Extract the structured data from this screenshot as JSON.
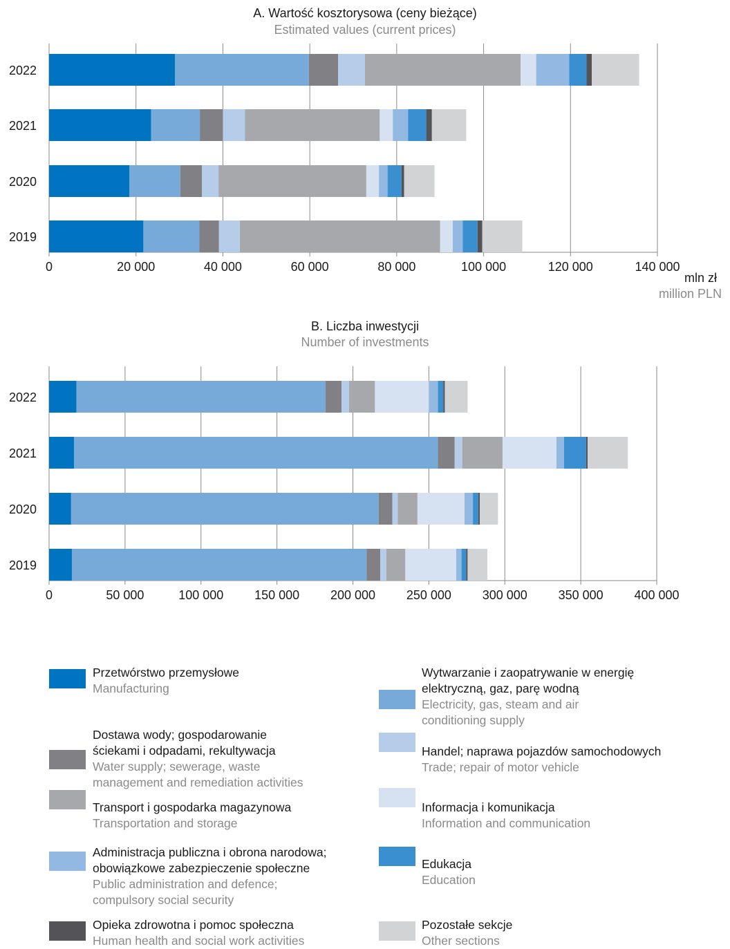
{
  "colors": {
    "manufacturing": "#0074c0",
    "energy": "#77aad8",
    "water": "#808085",
    "trade": "#b6cde9",
    "transport": "#a7a8ab",
    "information": "#d6e2f2",
    "public_admin": "#93b8e2",
    "education": "#3a8fd0",
    "health": "#545458",
    "other": "#d2d3d4"
  },
  "chart_data": [
    {
      "type": "bar",
      "orientation": "horizontal",
      "stacked": true,
      "title": "A. Wartość kosztorysowa (ceny bieżące)",
      "subtitle": "Estimated values (current prices)",
      "unit_main": "mln zł",
      "unit_sub": "million PLN",
      "xlim": [
        0,
        140000
      ],
      "xticks": [
        0,
        20000,
        40000,
        60000,
        80000,
        100000,
        120000,
        140000
      ],
      "xtick_labels": [
        "0",
        "20 000",
        "40 000",
        "60 000",
        "80 000",
        "100 000",
        "120 000",
        "140 000"
      ],
      "grid": true,
      "categories": [
        "2022",
        "2021",
        "2020",
        "2019"
      ],
      "series": [
        {
          "key": "manufacturing",
          "values": [
            29000,
            23500,
            18500,
            21700
          ]
        },
        {
          "key": "energy",
          "values": [
            30800,
            11200,
            11700,
            12900
          ]
        },
        {
          "key": "water",
          "values": [
            6700,
            5300,
            5000,
            4500
          ]
        },
        {
          "key": "trade",
          "values": [
            6200,
            5100,
            3800,
            4800
          ]
        },
        {
          "key": "transport",
          "values": [
            35800,
            31000,
            34000,
            46100
          ]
        },
        {
          "key": "information",
          "values": [
            3600,
            3000,
            2900,
            2900
          ]
        },
        {
          "key": "public_admin",
          "values": [
            7600,
            3500,
            2000,
            2300
          ]
        },
        {
          "key": "education",
          "values": [
            4000,
            4200,
            3200,
            3400
          ]
        },
        {
          "key": "health",
          "values": [
            1200,
            1300,
            600,
            1100
          ]
        },
        {
          "key": "other",
          "values": [
            10900,
            7900,
            7000,
            9200
          ]
        }
      ]
    },
    {
      "type": "bar",
      "orientation": "horizontal",
      "stacked": true,
      "title": "B. Liczba inwestycji",
      "subtitle": "Number of investments",
      "xlim": [
        0,
        400000
      ],
      "xticks": [
        0,
        50000,
        100000,
        150000,
        200000,
        250000,
        300000,
        350000,
        400000
      ],
      "xtick_labels": [
        "0",
        "50 000",
        "100 000",
        "150 000",
        "200 000",
        "250 000",
        "300 000",
        "350 000",
        "400 000"
      ],
      "grid": true,
      "categories": [
        "2022",
        "2021",
        "2020",
        "2019"
      ],
      "series": [
        {
          "key": "manufacturing",
          "values": [
            18000,
            16500,
            14500,
            15000
          ]
        },
        {
          "key": "energy",
          "values": [
            164000,
            239500,
            202500,
            194000
          ]
        },
        {
          "key": "water",
          "values": [
            10500,
            11000,
            9000,
            9000
          ]
        },
        {
          "key": "trade",
          "values": [
            5000,
            5000,
            3500,
            4000
          ]
        },
        {
          "key": "transport",
          "values": [
            17000,
            26500,
            13000,
            12500
          ]
        },
        {
          "key": "information",
          "values": [
            35500,
            35500,
            31000,
            33500
          ]
        },
        {
          "key": "public_admin",
          "values": [
            6000,
            5000,
            5500,
            3500
          ]
        },
        {
          "key": "education",
          "values": [
            3500,
            14500,
            3500,
            3000
          ]
        },
        {
          "key": "health",
          "values": [
            1000,
            1000,
            1000,
            1000
          ]
        },
        {
          "key": "other",
          "values": [
            15000,
            26500,
            12000,
            13000
          ]
        }
      ]
    }
  ],
  "legend": [
    {
      "key": "manufacturing",
      "pl": "Przetwórstwo przemysłowe",
      "en": "Manufacturing"
    },
    {
      "key": "water",
      "pl": "Dostawa wody; gospodarowanie\nściekami i odpadami, rekultywacja",
      "en": "Water supply; sewerage, waste\nmanagement and remediation activities"
    },
    {
      "key": "transport",
      "pl": "Transport i gospodarka magazynowa",
      "en": "Transportation and storage"
    },
    {
      "key": "public_admin",
      "pl": "Administracja publiczna i obrona narodowa;\nobowiązkowe zabezpieczenie społeczne",
      "en": "Public administration and defence;\ncompulsory social security"
    },
    {
      "key": "health",
      "pl": "Opieka zdrowotna i pomoc społeczna",
      "en": "Human health and social work activities"
    },
    {
      "key": "energy",
      "pl": "Wytwarzanie i zaopatrywanie w energię\nelektryczną, gaz, parę wodną",
      "en": "Electricity, gas, steam and air\nconditioning supply"
    },
    {
      "key": "trade",
      "pl": "Handel; naprawa pojazdów samochodowych",
      "en": "Trade; repair of motor vehicle"
    },
    {
      "key": "information",
      "pl": "Informacja i komunikacja",
      "en": "Information and communication"
    },
    {
      "key": "education",
      "pl": "Edukacja",
      "en": "Education"
    },
    {
      "key": "other",
      "pl": "Pozostałe sekcje",
      "en": "Other sections"
    }
  ]
}
